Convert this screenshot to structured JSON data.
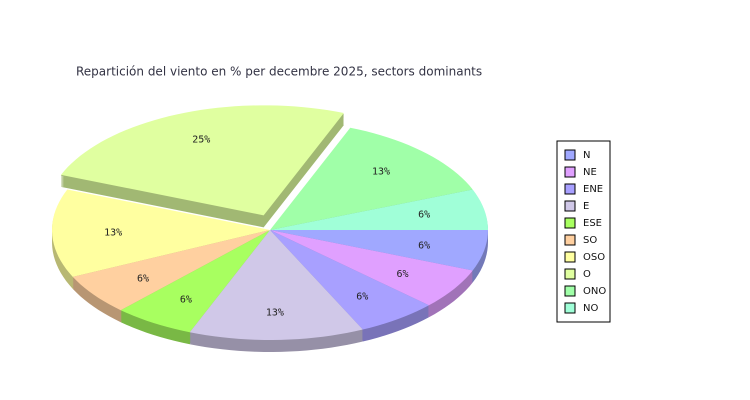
{
  "chart_data": {
    "type": "pie3d",
    "title": "Repartición del viento en % per decembre 2025, sectors dominants",
    "categories": [
      "N",
      "NE",
      "ENE",
      "E",
      "ESE",
      "SO",
      "OSO",
      "O",
      "ONO",
      "NO"
    ],
    "values": [
      6,
      6,
      6,
      13,
      6,
      6,
      13,
      25,
      13,
      6
    ],
    "value_labels": [
      "6%",
      "6%",
      "6%",
      "13%",
      "6%",
      "6%",
      "13%",
      "25%",
      "13%",
      "6%"
    ],
    "colors": [
      "#a0a8ff",
      "#e0a0ff",
      "#a8a0ff",
      "#d0c8e8",
      "#a8ff60",
      "#ffd0a0",
      "#ffffa0",
      "#e0ffa0",
      "#a0ffa8",
      "#a0ffd8"
    ],
    "exploded_index": 7,
    "legend": "right"
  }
}
